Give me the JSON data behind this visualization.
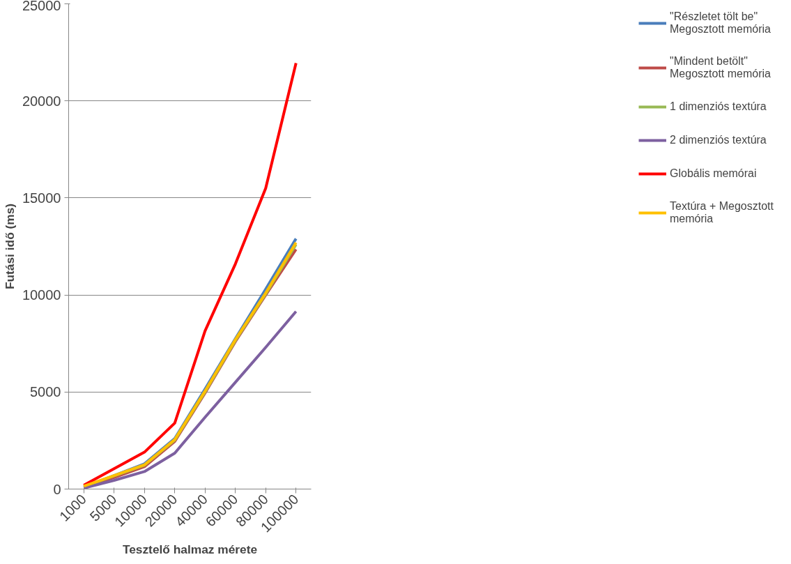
{
  "chart_data": {
    "type": "line",
    "xlabel": "Tesztelő halmaz mérete",
    "ylabel": "Futási idő (ms)",
    "categories": [
      "1000",
      "5000",
      "10000",
      "20000",
      "40000",
      "60000",
      "80000",
      "100000"
    ],
    "ylim": [
      0,
      25000
    ],
    "yticks": [
      0,
      5000,
      10000,
      15000,
      20000,
      25000
    ],
    "grid": "y",
    "legend": "right",
    "marker": "none",
    "line_style": "solid",
    "series": [
      {
        "name": "\"Részletet tölt be\" Megosztott memória",
        "color": "#4a7ebb",
        "values": [
          100,
          700,
          1300,
          2600,
          5150,
          7750,
          10300,
          12900
        ]
      },
      {
        "name": "\"Mindent betölt\" Megosztott memória",
        "color": "#be4b48",
        "values": [
          100,
          600,
          1150,
          2450,
          4950,
          7600,
          10000,
          12350
        ]
      },
      {
        "name": "1 dimenziós textúra",
        "color": "#98b954",
        "values": [
          130,
          680,
          1230,
          2520,
          5000,
          7650,
          10050,
          12600
        ]
      },
      {
        "name": "2 dimenziós textúra",
        "color": "#7d60a0",
        "values": [
          50,
          450,
          900,
          1850,
          3700,
          5500,
          7300,
          9150
        ]
      },
      {
        "name": "Globális memórai",
        "color": "#ff0000",
        "values": [
          200,
          1050,
          1900,
          3400,
          8150,
          11600,
          15500,
          21950
        ]
      },
      {
        "name": "Textúra + Megosztott memória",
        "color": "#ffc000",
        "values": [
          150,
          700,
          1250,
          2550,
          5050,
          7700,
          10100,
          12700
        ]
      }
    ]
  }
}
